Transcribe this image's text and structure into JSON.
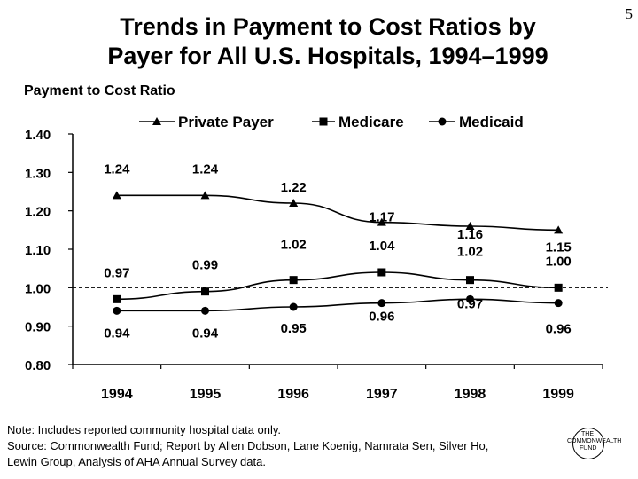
{
  "page": {
    "title_line1": "Trends in Payment to Cost Ratios by",
    "title_line2": "Payer for All U.S. Hospitals, 1994–1999",
    "page_number": "5",
    "note_line1": "Note: Includes reported community hospital data only.",
    "note_line2": "Source: Commonwealth Fund; Report by Allen Dobson, Lane Koenig, Namrata Sen, Silver Ho,",
    "note_line3": "Lewin Group, Analysis of AHA Annual Survey data.",
    "logo_line1": "THE",
    "logo_line2": "COMMONWEALTH",
    "logo_line3": "FUND"
  },
  "chart_data": {
    "type": "line",
    "title": "Trends in Payment to Cost Ratios by Payer for All U.S. Hospitals, 1994–1999",
    "ylabel": "Payment to Cost Ratio",
    "xlabel": "",
    "categories": [
      "1994",
      "1995",
      "1996",
      "1997",
      "1998",
      "1999"
    ],
    "ylim": [
      0.8,
      1.4
    ],
    "yticks": [
      "0.80",
      "0.90",
      "1.00",
      "1.10",
      "1.20",
      "1.30",
      "1.40"
    ],
    "reference_line": 1.0,
    "grid": false,
    "legend_position": "top",
    "series": [
      {
        "name": "Private Payer",
        "marker": "triangle",
        "color": "#000000",
        "values": [
          1.24,
          1.24,
          1.22,
          1.17,
          1.16,
          1.15
        ],
        "labels": [
          "1.24",
          "1.24",
          "1.22",
          "1.17",
          "1.16",
          "1.15"
        ]
      },
      {
        "name": "Medicare",
        "marker": "square",
        "color": "#000000",
        "values": [
          0.97,
          0.99,
          1.02,
          1.04,
          1.02,
          1.0
        ],
        "labels": [
          "0.97",
          "0.99",
          "1.02",
          "1.04",
          "1.02",
          "1.00"
        ]
      },
      {
        "name": "Medicaid",
        "marker": "circle",
        "color": "#000000",
        "values": [
          0.94,
          0.94,
          0.95,
          0.96,
          0.97,
          0.96
        ],
        "labels": [
          "0.94",
          "0.94",
          "0.95",
          "0.96",
          "0.97",
          "0.96"
        ]
      }
    ]
  }
}
